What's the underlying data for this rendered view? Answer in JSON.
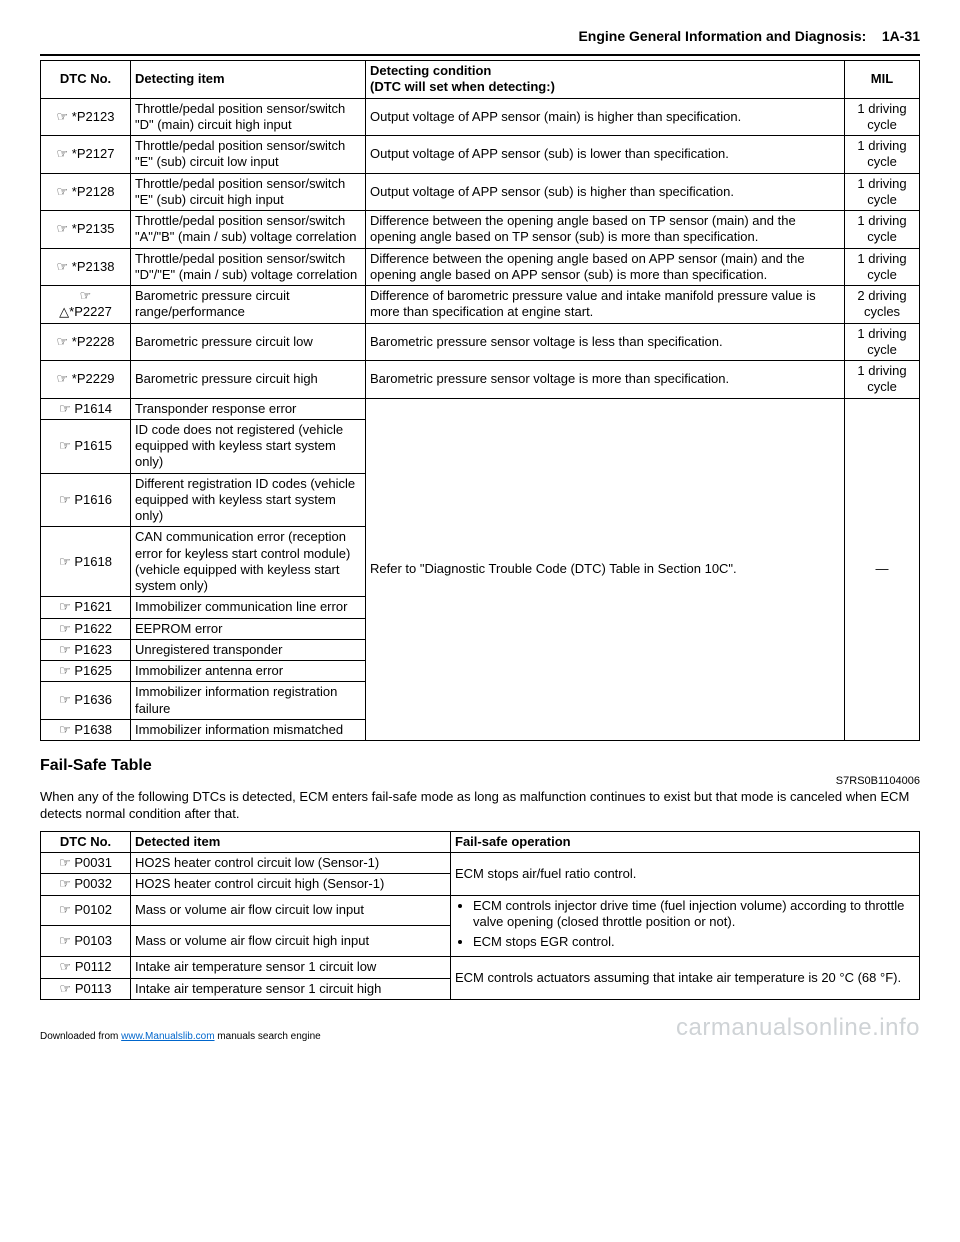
{
  "header": {
    "section_title": "Engine General Information and Diagnosis:",
    "page_no": "1A-31"
  },
  "dtc_table": {
    "headers": {
      "dtc_no": "DTC No.",
      "detecting_item": "Detecting item",
      "detecting_condition": "Detecting condition\n(DTC will set when detecting:)",
      "mil": "MIL"
    },
    "rows": [
      {
        "dtc": "☞ *P2123",
        "item": "Throttle/pedal position sensor/switch \"D\" (main) circuit high input",
        "cond": "Output voltage of APP sensor (main) is higher than specification.",
        "mil": "1 driving cycle"
      },
      {
        "dtc": "☞ *P2127",
        "item": "Throttle/pedal position sensor/switch \"E\" (sub) circuit low input",
        "cond": "Output voltage of APP sensor (sub) is lower than specification.",
        "mil": "1 driving cycle"
      },
      {
        "dtc": "☞ *P2128",
        "item": "Throttle/pedal position sensor/switch \"E\" (sub) circuit high input",
        "cond": "Output voltage of APP sensor (sub) is higher than specification.",
        "mil": "1 driving cycle"
      },
      {
        "dtc": "☞ *P2135",
        "item": "Throttle/pedal position sensor/switch \"A\"/\"B\" (main / sub) voltage correlation",
        "cond": "Difference between the opening angle based on TP sensor (main) and the opening angle based on TP sensor (sub) is more than specification.",
        "mil": "1 driving cycle"
      },
      {
        "dtc": "☞ *P2138",
        "item": "Throttle/pedal position sensor/switch \"D\"/\"E\" (main / sub) voltage correlation",
        "cond": "Difference between the opening angle based on APP sensor (main) and the opening angle based on APP sensor (sub) is more than specification.",
        "mil": "1 driving cycle"
      },
      {
        "dtc": "☞\n△*P2227",
        "item": "Barometric pressure circuit range/performance",
        "cond": "Difference of barometric pressure value and intake manifold pressure value is more than specification at engine start.",
        "mil": "2 driving cycles"
      },
      {
        "dtc": "☞ *P2228",
        "item": "Barometric pressure circuit low",
        "cond": "Barometric pressure sensor voltage is less than specification.",
        "mil": "1 driving cycle"
      },
      {
        "dtc": "☞ *P2229",
        "item": "Barometric pressure circuit high",
        "cond": "Barometric pressure sensor voltage is more than specification.",
        "mil": "1 driving cycle"
      }
    ],
    "merged_rows": [
      {
        "dtc": "☞ P1614",
        "item": "Transponder response error"
      },
      {
        "dtc": "☞ P1615",
        "item": "ID code does not registered (vehicle equipped with keyless start system only)"
      },
      {
        "dtc": "☞ P1616",
        "item": "Different registration ID codes (vehicle equipped with keyless start system only)"
      },
      {
        "dtc": "☞ P1618",
        "item": "CAN communication error (reception error for keyless start control module) (vehicle equipped with keyless start system only)"
      },
      {
        "dtc": "☞ P1621",
        "item": "Immobilizer communication line error"
      },
      {
        "dtc": "☞ P1622",
        "item": "EEPROM error"
      },
      {
        "dtc": "☞ P1623",
        "item": "Unregistered transponder"
      },
      {
        "dtc": "☞ P1625",
        "item": "Immobilizer antenna error"
      },
      {
        "dtc": "☞ P1636",
        "item": "Immobilizer information registration failure"
      },
      {
        "dtc": "☞ P1638",
        "item": "Immobilizer information mismatched"
      }
    ],
    "merged_cond": "Refer to \"Diagnostic Trouble Code (DTC) Table in Section 10C\".",
    "merged_mil": "—"
  },
  "failsafe": {
    "heading": "Fail-Safe Table",
    "doc_code": "S7RS0B1104006",
    "intro": "When any of the following DTCs is detected, ECM enters fail-safe mode as long as malfunction continues to exist but that mode is canceled when ECM detects normal condition after that.",
    "headers": {
      "dtc_no": "DTC No.",
      "detected_item": "Detected item",
      "failsafe_op": "Fail-safe operation"
    },
    "group1": {
      "rows": [
        {
          "dtc": "☞ P0031",
          "item": "HO2S heater control circuit low (Sensor-1)"
        },
        {
          "dtc": "☞ P0032",
          "item": "HO2S heater control circuit high (Sensor-1)"
        }
      ],
      "op": "ECM stops air/fuel ratio control."
    },
    "group2": {
      "rows": [
        {
          "dtc": "☞ P0102",
          "item": "Mass or volume air flow circuit low input"
        },
        {
          "dtc": "☞ P0103",
          "item": "Mass or volume air flow circuit high input"
        }
      ],
      "op_bullets": [
        "ECM controls injector drive time (fuel injection volume) according to throttle valve opening (closed throttle position or not).",
        "ECM stops EGR control."
      ]
    },
    "group3": {
      "rows": [
        {
          "dtc": "☞ P0112",
          "item": "Intake air temperature sensor 1 circuit low"
        },
        {
          "dtc": "☞ P0113",
          "item": "Intake air temperature sensor 1 circuit high"
        }
      ],
      "op": "ECM controls actuators assuming that intake air temperature is 20 °C (68 °F)."
    }
  },
  "footer": {
    "left_prefix": "Downloaded from ",
    "left_link": "www.Manualslib.com",
    "left_suffix": " manuals search engine",
    "watermark": "carmanualsonline.info"
  }
}
